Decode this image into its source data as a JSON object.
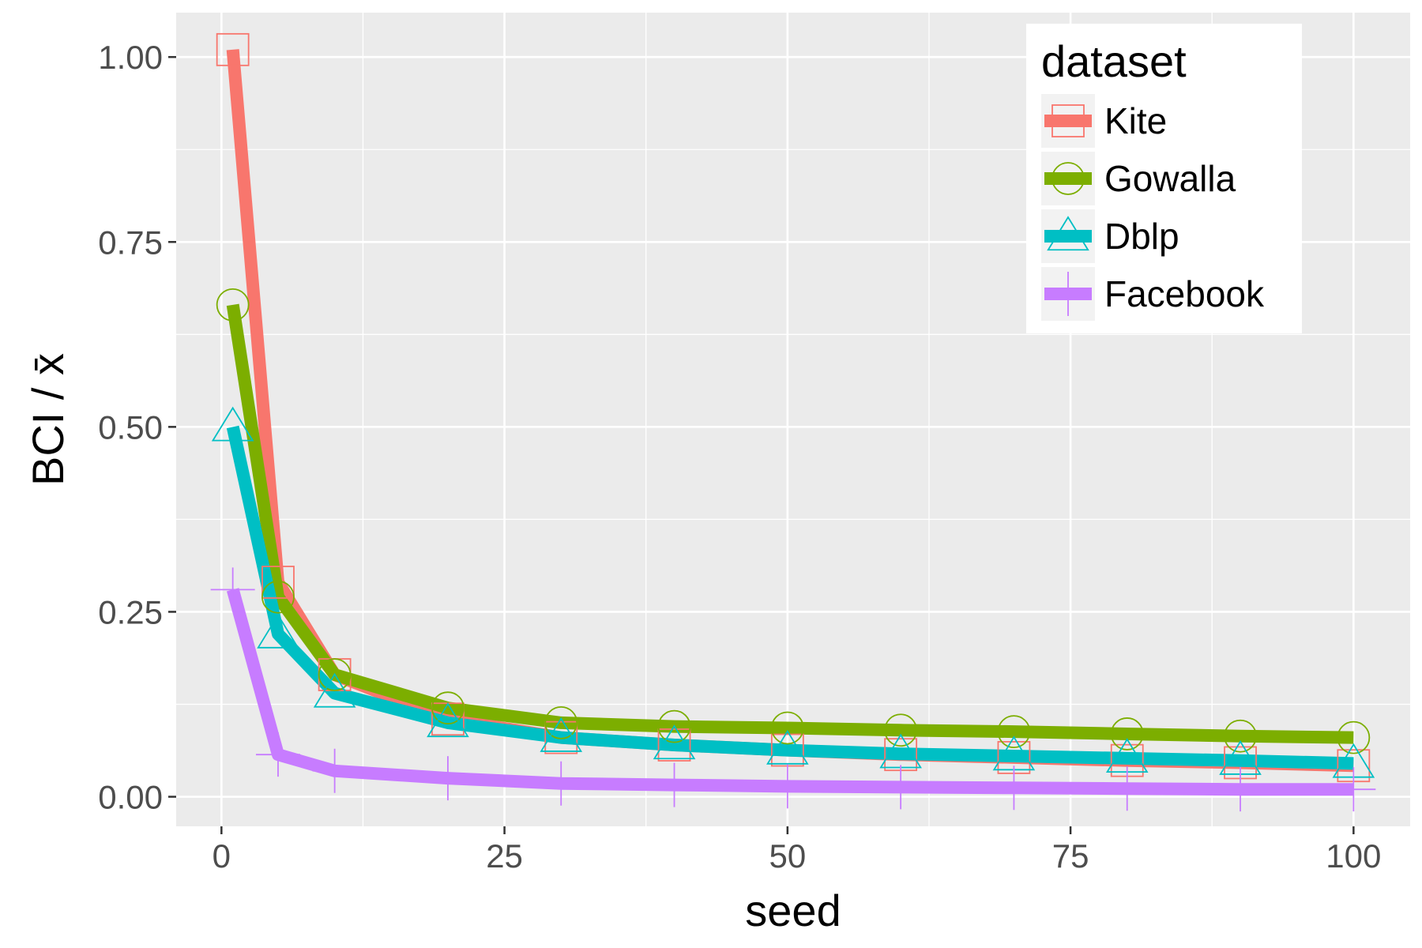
{
  "chart_data": {
    "type": "line",
    "xlabel": "seed",
    "ylabel": "BCI / x̄",
    "xlim": [
      -4,
      105
    ],
    "ylim": [
      -0.04,
      1.06
    ],
    "xticks": [
      0,
      25,
      50,
      75,
      100
    ],
    "xtick_labels": [
      "0",
      "25",
      "50",
      "75",
      "100"
    ],
    "yticks": [
      0.0,
      0.25,
      0.5,
      0.75,
      1.0
    ],
    "ytick_labels": [
      "0.00",
      "0.25",
      "0.50",
      "0.75",
      "1.00"
    ],
    "grid": true,
    "legend": {
      "title": "dataset",
      "placement": "top-right"
    },
    "x": [
      1,
      5,
      10,
      20,
      30,
      40,
      50,
      60,
      70,
      80,
      90,
      100
    ],
    "series": [
      {
        "name": "Kite",
        "color": "#F8766D",
        "marker": "square",
        "values": [
          1.01,
          0.29,
          0.165,
          0.105,
          0.08,
          0.07,
          0.063,
          0.057,
          0.053,
          0.049,
          0.046,
          0.042
        ]
      },
      {
        "name": "Gowalla",
        "color": "#7CAE00",
        "marker": "circle",
        "values": [
          0.665,
          0.27,
          0.165,
          0.12,
          0.1,
          0.095,
          0.093,
          0.09,
          0.088,
          0.085,
          0.082,
          0.08
        ]
      },
      {
        "name": "Dblp",
        "color": "#00BFC4",
        "marker": "triangle",
        "values": [
          0.5,
          0.22,
          0.14,
          0.1,
          0.08,
          0.07,
          0.063,
          0.058,
          0.055,
          0.052,
          0.049,
          0.045
        ]
      },
      {
        "name": "Facebook",
        "color": "#C77CFF",
        "marker": "plus",
        "values": [
          0.28,
          0.057,
          0.035,
          0.025,
          0.018,
          0.016,
          0.014,
          0.013,
          0.012,
          0.011,
          0.01,
          0.01
        ]
      }
    ]
  }
}
